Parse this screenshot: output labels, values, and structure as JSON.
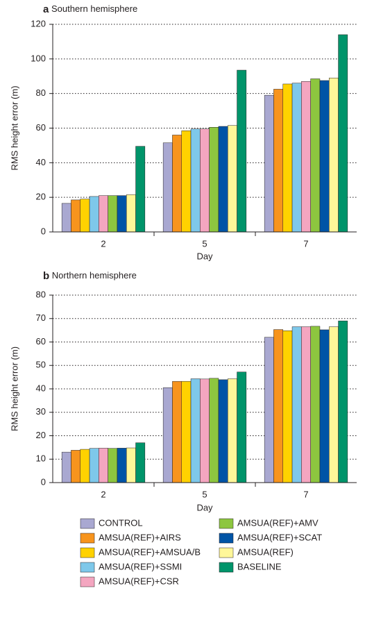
{
  "legend": [
    {
      "name": "CONTROL",
      "color": "#a9a8d1"
    },
    {
      "name": "AMSUA(REF)+AIRS",
      "color": "#f7941d"
    },
    {
      "name": "AMSUA(REF)+AMSUA/B",
      "color": "#ffd200"
    },
    {
      "name": "AMSUA(REF)+SSMI",
      "color": "#7ec8ea"
    },
    {
      "name": "AMSUA(REF)+CSR",
      "color": "#f4a6c0"
    },
    {
      "name": "AMSUA(REF)+AMV",
      "color": "#8dc63f"
    },
    {
      "name": "AMSUA(REF)+SCAT",
      "color": "#0054a6"
    },
    {
      "name": "AMSUA(REF)",
      "color": "#fff799"
    },
    {
      "name": "BASELINE",
      "color": "#00946a"
    }
  ],
  "chart_data": [
    {
      "type": "bar",
      "panel": "a",
      "title": "Southern hemisphere",
      "x_label": "Day",
      "y_label": "RMS height error (m)",
      "categories": [
        "2",
        "5",
        "7"
      ],
      "ylim": [
        0,
        120
      ],
      "yticks": [
        0,
        20,
        40,
        60,
        80,
        100,
        120
      ],
      "grid": true,
      "series": [
        {
          "values": [
            16.5,
            51.5,
            79
          ]
        },
        {
          "values": [
            18.5,
            56,
            82.5
          ]
        },
        {
          "values": [
            19,
            58.5,
            85.5
          ]
        },
        {
          "values": [
            20.5,
            59.5,
            86
          ]
        },
        {
          "values": [
            21,
            59.5,
            87
          ]
        },
        {
          "values": [
            21,
            60.5,
            88.5
          ]
        },
        {
          "values": [
            21,
            61,
            87.5
          ]
        },
        {
          "values": [
            21.5,
            61.5,
            89
          ]
        },
        {
          "values": [
            49.5,
            93.5,
            114
          ]
        }
      ]
    },
    {
      "type": "bar",
      "panel": "b",
      "title": "Northern hemisphere",
      "x_label": "Day",
      "y_label": "RMS height error (m)",
      "categories": [
        "2",
        "5",
        "7"
      ],
      "ylim": [
        0,
        80
      ],
      "yticks": [
        0,
        10,
        20,
        30,
        40,
        50,
        60,
        70,
        80
      ],
      "grid": true,
      "series": [
        {
          "values": [
            13,
            40.5,
            62
          ]
        },
        {
          "values": [
            13.8,
            43.2,
            65.3
          ]
        },
        {
          "values": [
            14.2,
            43.2,
            64.8
          ]
        },
        {
          "values": [
            14.6,
            44.3,
            66.5
          ]
        },
        {
          "values": [
            14.7,
            44.2,
            66.5
          ]
        },
        {
          "values": [
            14.6,
            44.5,
            66.7
          ]
        },
        {
          "values": [
            14.7,
            43.9,
            65.2
          ]
        },
        {
          "values": [
            14.8,
            44.3,
            66.5
          ]
        },
        {
          "values": [
            17,
            47.2,
            69
          ]
        }
      ]
    }
  ]
}
